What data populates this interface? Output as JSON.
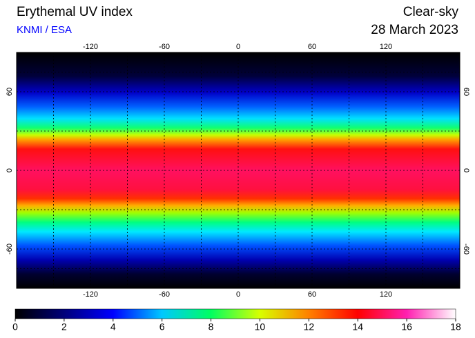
{
  "header": {
    "title": "Erythemal UV index",
    "source": "KNMI / ESA",
    "condition": "Clear-sky",
    "date": "28 March 2023"
  },
  "map": {
    "xlim": [
      -180,
      180
    ],
    "ylim": [
      -90,
      90
    ],
    "xticks": [
      -120,
      -60,
      0,
      60,
      120
    ],
    "yticks": [
      -60,
      0,
      60
    ]
  },
  "colorbar": {
    "lim": [
      0,
      18
    ],
    "ticks": [
      0,
      2,
      4,
      6,
      8,
      10,
      12,
      14,
      16,
      18
    ],
    "colors": [
      "#000000",
      "#00007a",
      "#0000ff",
      "#00c8ff",
      "#00ff60",
      "#d8ff00",
      "#ff8000",
      "#ff0000",
      "#ff20b0",
      "#ffffff"
    ]
  }
}
